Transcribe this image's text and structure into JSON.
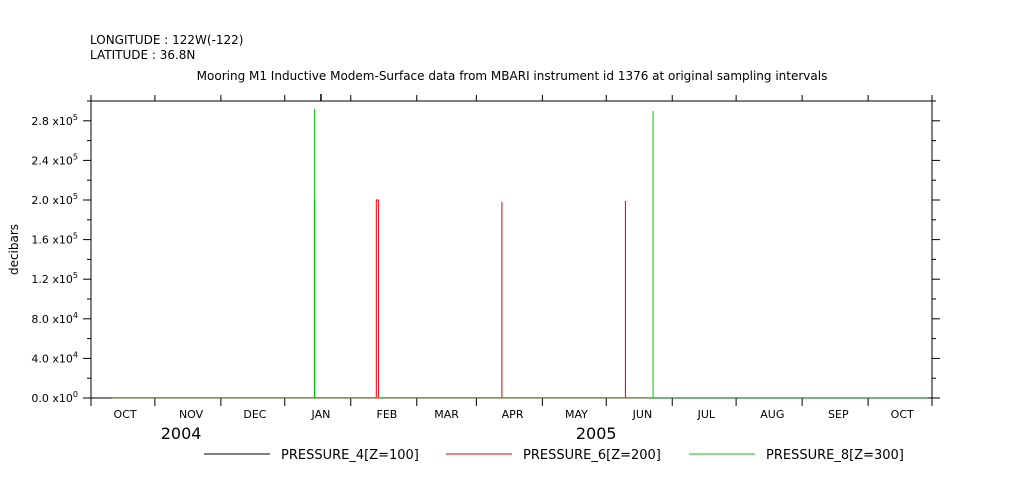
{
  "header": {
    "longitude": "LONGITUDE : 122W(-122)",
    "latitude": "LATITUDE : 36.8N"
  },
  "chart_data": {
    "type": "line",
    "title": "Mooring M1 Inductive Modem-Surface data from MBARI instrument id 1376 at original sampling intervals",
    "ylabel": "decibars",
    "xlabel": "",
    "xlim": [
      "2004-09-15",
      "2005-10-15"
    ],
    "ylim": [
      0,
      300000
    ],
    "month_ticks": [
      {
        "label": "OCT",
        "date": "2004-10-01"
      },
      {
        "label": "NOV",
        "date": "2004-11-01"
      },
      {
        "label": "DEC",
        "date": "2004-12-01"
      },
      {
        "label": "JAN",
        "date": "2005-01-01"
      },
      {
        "label": "FEB",
        "date": "2005-02-01"
      },
      {
        "label": "MAR",
        "date": "2005-03-01"
      },
      {
        "label": "APR",
        "date": "2005-04-01"
      },
      {
        "label": "MAY",
        "date": "2005-05-01"
      },
      {
        "label": "JUN",
        "date": "2005-06-01"
      },
      {
        "label": "JUL",
        "date": "2005-07-01"
      },
      {
        "label": "AUG",
        "date": "2005-08-01"
      },
      {
        "label": "SEP",
        "date": "2005-09-01"
      },
      {
        "label": "OCT",
        "date": "2005-10-01"
      }
    ],
    "year_labels": [
      {
        "label": "2004",
        "date": "2004-11-01"
      },
      {
        "label": "2005",
        "date": "2005-05-15"
      }
    ],
    "yticks": [
      {
        "value": 0,
        "mant": "0.0",
        "exp": "0"
      },
      {
        "value": 40000,
        "mant": "4.0",
        "exp": "4"
      },
      {
        "value": 80000,
        "mant": "8.0",
        "exp": "4"
      },
      {
        "value": 120000,
        "mant": "1.2",
        "exp": "5"
      },
      {
        "value": 160000,
        "mant": "1.6",
        "exp": "5"
      },
      {
        "value": 200000,
        "mant": "2.0",
        "exp": "5"
      },
      {
        "value": 240000,
        "mant": "2.4",
        "exp": "5"
      },
      {
        "value": 280000,
        "mant": "2.8",
        "exp": "5"
      }
    ],
    "series": [
      {
        "name": "PRESSURE_4[Z=100]",
        "color": "#000000",
        "points": [
          [
            "2004-09-25",
            10
          ],
          [
            "2004-12-29",
            10
          ],
          [
            "2004-12-29",
            200000
          ],
          [
            "2004-12-29",
            10
          ],
          [
            "2005-10-15",
            10
          ]
        ]
      },
      {
        "name": "PRESSURE_6[Z=200]",
        "color": "#dd0000",
        "points": [
          [
            "2004-09-25",
            100
          ],
          [
            "2005-01-27",
            100
          ],
          [
            "2005-01-27",
            200000
          ],
          [
            "2005-01-28",
            200000
          ],
          [
            "2005-01-28",
            100
          ],
          [
            "2005-03-27",
            100
          ],
          [
            "2005-03-27",
            198000
          ],
          [
            "2005-03-27",
            100
          ],
          [
            "2005-05-24",
            100
          ],
          [
            "2005-05-24",
            199000
          ],
          [
            "2005-05-24",
            100
          ],
          [
            "2005-06-04",
            100
          ]
        ]
      },
      {
        "name": "PRESSURE_8[Z=300]",
        "color": "#00cc00",
        "points": [
          [
            "2004-09-25",
            200
          ],
          [
            "2004-12-29",
            200
          ],
          [
            "2004-12-29",
            292000
          ],
          [
            "2004-12-29",
            200
          ],
          [
            "2005-06-06",
            200
          ],
          [
            "2005-06-06",
            290000
          ],
          [
            "2005-06-06",
            200
          ],
          [
            "2005-10-13",
            200
          ]
        ]
      }
    ],
    "legend_position": "bottom"
  }
}
